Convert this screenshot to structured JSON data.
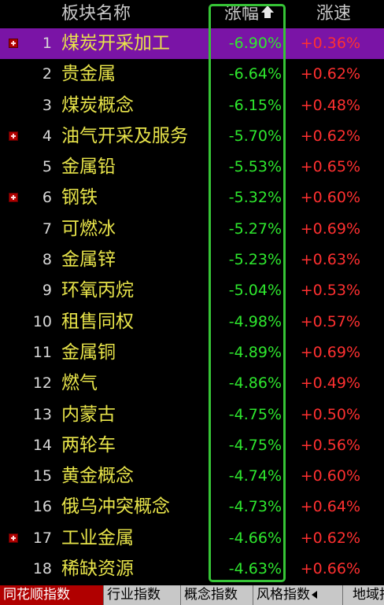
{
  "header": {
    "name": "板块名称",
    "change": "涨幅",
    "speed": "涨速"
  },
  "rows": [
    {
      "index": "1",
      "name": "煤炭开采加工",
      "change": "-6.90%",
      "speed": "+0.36%",
      "expandable": true,
      "selected": true
    },
    {
      "index": "2",
      "name": "贵金属",
      "change": "-6.64%",
      "speed": "+0.62%",
      "expandable": false,
      "selected": false
    },
    {
      "index": "3",
      "name": "煤炭概念",
      "change": "-6.15%",
      "speed": "+0.48%",
      "expandable": false,
      "selected": false
    },
    {
      "index": "4",
      "name": "油气开采及服务",
      "change": "-5.70%",
      "speed": "+0.62%",
      "expandable": true,
      "selected": false
    },
    {
      "index": "5",
      "name": "金属铅",
      "change": "-5.53%",
      "speed": "+0.65%",
      "expandable": false,
      "selected": false
    },
    {
      "index": "6",
      "name": "钢铁",
      "change": "-5.32%",
      "speed": "+0.60%",
      "expandable": true,
      "selected": false
    },
    {
      "index": "7",
      "name": "可燃冰",
      "change": "-5.27%",
      "speed": "+0.69%",
      "expandable": false,
      "selected": false
    },
    {
      "index": "8",
      "name": "金属锌",
      "change": "-5.23%",
      "speed": "+0.63%",
      "expandable": false,
      "selected": false
    },
    {
      "index": "9",
      "name": "环氧丙烷",
      "change": "-5.04%",
      "speed": "+0.53%",
      "expandable": false,
      "selected": false
    },
    {
      "index": "10",
      "name": "租售同权",
      "change": "-4.98%",
      "speed": "+0.57%",
      "expandable": false,
      "selected": false
    },
    {
      "index": "11",
      "name": "金属铜",
      "change": "-4.89%",
      "speed": "+0.69%",
      "expandable": false,
      "selected": false
    },
    {
      "index": "12",
      "name": "燃气",
      "change": "-4.86%",
      "speed": "+0.49%",
      "expandable": false,
      "selected": false
    },
    {
      "index": "13",
      "name": "内蒙古",
      "change": "-4.75%",
      "speed": "+0.50%",
      "expandable": false,
      "selected": false
    },
    {
      "index": "14",
      "name": "两轮车",
      "change": "-4.75%",
      "speed": "+0.56%",
      "expandable": false,
      "selected": false
    },
    {
      "index": "15",
      "name": "黄金概念",
      "change": "-4.74%",
      "speed": "+0.60%",
      "expandable": false,
      "selected": false
    },
    {
      "index": "16",
      "name": "俄乌冲突概念",
      "change": "-4.73%",
      "speed": "+0.64%",
      "expandable": false,
      "selected": false
    },
    {
      "index": "17",
      "name": "工业金属",
      "change": "-4.66%",
      "speed": "+0.62%",
      "expandable": true,
      "selected": false
    },
    {
      "index": "18",
      "name": "稀缺资源",
      "change": "-4.63%",
      "speed": "+0.66%",
      "expandable": false,
      "selected": false
    }
  ],
  "tabs": [
    {
      "label": "同花顺指数",
      "active": true
    },
    {
      "label": "行业指数",
      "active": false
    },
    {
      "label": "概念指数",
      "active": false
    },
    {
      "label": "风格指数",
      "active": false
    },
    {
      "label": "地域指数",
      "active": false
    }
  ],
  "colors": {
    "background": "#000000",
    "name_text": "#e8e44a",
    "change_negative": "#2ee82e",
    "speed_positive": "#ff3030",
    "selected_row": "#7a14a6",
    "sort_frame": "#36c436",
    "active_tab": "#b00000"
  },
  "icons": {
    "sort": "sort-ascending-arrow-icon",
    "expand": "expand-plus-icon"
  }
}
